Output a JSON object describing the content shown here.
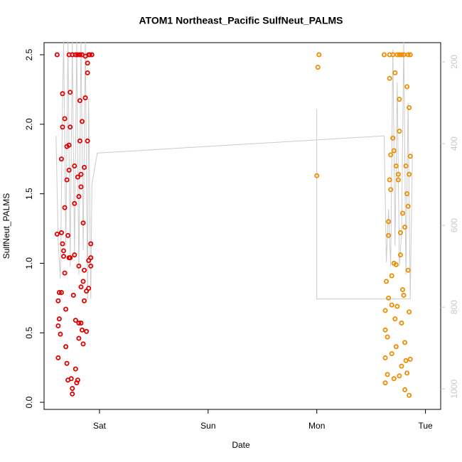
{
  "chart_data": {
    "type": "scatter",
    "title": "ATOM1 Northeast_Pacific SulfNeut_PALMS",
    "x_label": "Date",
    "y_label": "SulfNeut_PALMS",
    "xlim": [
      -0.51,
      3.14
    ],
    "xticks": [
      {
        "value": 0,
        "label": "Sat"
      },
      {
        "value": 1,
        "label": "Sun"
      },
      {
        "value": 2,
        "label": "Mon"
      },
      {
        "value": 3,
        "label": "Tue"
      }
    ],
    "ylim": [
      -0.051,
      2.587
    ],
    "yticks": [
      {
        "value": 0,
        "label": "0.0"
      },
      {
        "value": 0.5,
        "label": "0.5"
      },
      {
        "value": 1,
        "label": "1.0"
      },
      {
        "value": 1.5,
        "label": "1.5"
      },
      {
        "value": 2,
        "label": "2.0"
      },
      {
        "value": 2.5,
        "label": "2.5"
      }
    ],
    "y2lim": [
      1050,
      153
    ],
    "y2ticks": [
      200,
      400,
      600,
      800,
      1000
    ],
    "y2_color": "#c8c8c8",
    "series": [
      {
        "mode": "line",
        "axis": "y2",
        "color": "#cccccc",
        "x": [
          -0.4,
          -0.38,
          -0.36,
          -0.34,
          -0.33,
          -0.31,
          -0.29,
          -0.27,
          -0.25,
          -0.23,
          -0.21,
          -0.19,
          -0.17,
          -0.15,
          -0.13,
          -0.11,
          -0.1,
          -0.08,
          -0.07,
          -0.02,
          2.62,
          2.64,
          2.66,
          2.68,
          2.7,
          2.72,
          2.74,
          2.76,
          2.78,
          2.8,
          2.82,
          2.84,
          2.86,
          2.88,
          null,
          2.0,
          2.0,
          2.86
        ],
        "values": [
          381,
          640,
          730,
          300,
          150,
          650,
          150,
          700,
          150,
          680,
          150,
          720,
          150,
          660,
          150,
          780,
          290,
          780,
          500,
          423,
          381,
          690,
          560,
          700,
          170,
          650,
          250,
          700,
          620,
          150,
          720,
          300,
          780,
          420,
          null,
          315,
          780,
          780
        ]
      },
      {
        "mode": "points",
        "color": "#e00000",
        "x": [
          -0.39,
          -0.39,
          -0.38,
          -0.38,
          -0.38,
          -0.37,
          -0.37,
          -0.36,
          -0.35,
          -0.35,
          -0.35,
          -0.34,
          -0.34,
          -0.34,
          -0.33,
          -0.33,
          -0.32,
          -0.32,
          -0.32,
          -0.31,
          -0.31,
          -0.3,
          -0.3,
          -0.3,
          -0.29,
          -0.29,
          -0.28,
          -0.28,
          -0.28,
          -0.28,
          -0.27,
          -0.27,
          -0.27,
          -0.26,
          -0.25,
          -0.25,
          -0.25,
          -0.24,
          -0.23,
          -0.23,
          -0.23,
          -0.22,
          -0.22,
          -0.22,
          -0.21,
          -0.2,
          -0.2,
          -0.2,
          -0.19,
          -0.19,
          -0.19,
          -0.19,
          -0.18,
          -0.18,
          -0.18,
          -0.17,
          -0.17,
          -0.17,
          -0.17,
          -0.16,
          -0.16,
          -0.16,
          -0.15,
          -0.15,
          -0.15,
          -0.14,
          -0.14,
          -0.14,
          -0.13,
          -0.13,
          -0.12,
          -0.12,
          -0.11,
          -0.11,
          -0.11,
          -0.1,
          -0.1,
          -0.1,
          -0.09,
          -0.08,
          -0.08,
          -0.08,
          -0.07
        ],
        "values": [
          2.5,
          1.21,
          0.73,
          0.55,
          0.32,
          0.6,
          0.79,
          0.49,
          1.75,
          1.22,
          0.79,
          2.22,
          1.98,
          1.14,
          1.09,
          1.05,
          2.04,
          1.4,
          0.93,
          0.67,
          0.4,
          0.28,
          1.84,
          1.6,
          1.2,
          0.16,
          2.5,
          1.85,
          1.67,
          1.04,
          2.23,
          1.98,
          1.04,
          0.17,
          2.5,
          0.1,
          0.06,
          0.77,
          1.7,
          1.43,
          1.06,
          2.5,
          0.59,
          0.24,
          0.14,
          2.5,
          1.62,
          0.16,
          1.48,
          0.98,
          0.57,
          0.46,
          2.5,
          2.17,
          1.88,
          1.64,
          1.55,
          0.83,
          0.57,
          2.5,
          2.02,
          0.52,
          1.29,
          0.87,
          0.42,
          1.69,
          0.73,
          0.95,
          2.49,
          2.19,
          0.8,
          0.51,
          2.44,
          2.37,
          1.88,
          2.5,
          1.02,
          0.82,
          2.5,
          1.14,
          1.04,
          0.98,
          2.5
        ]
      },
      {
        "mode": "points",
        "color": "#f08c00",
        "x": [
          2.02,
          2.01,
          2.0,
          2.62,
          2.63,
          2.63,
          2.63,
          2.63,
          2.64,
          2.65,
          2.65,
          2.66,
          2.66,
          2.66,
          2.67,
          2.67,
          2.67,
          2.68,
          2.68,
          2.69,
          2.69,
          2.69,
          2.7,
          2.7,
          2.71,
          2.71,
          2.71,
          2.72,
          2.72,
          2.73,
          2.73,
          2.73,
          2.74,
          2.74,
          2.75,
          2.75,
          2.76,
          2.76,
          2.76,
          2.76,
          2.77,
          2.77,
          2.78,
          2.78,
          2.78,
          2.79,
          2.79,
          2.8,
          2.8,
          2.81,
          2.81,
          2.81,
          2.82,
          2.82,
          2.83,
          2.83,
          2.83,
          2.84,
          2.84,
          2.84,
          2.85,
          2.85,
          2.85,
          2.85,
          2.86,
          2.86,
          2.86
        ],
        "values": [
          2.5,
          2.41,
          1.63,
          2.5,
          0.66,
          0.52,
          0.32,
          0.14,
          0.87,
          0.47,
          0.2,
          1.3,
          1.2,
          0.75,
          2.5,
          2.33,
          1.6,
          1.78,
          1.53,
          0.91,
          0.7,
          0.35,
          2.5,
          1.9,
          1.81,
          1.0,
          0.17,
          2.37,
          0.6,
          1.7,
          0.99,
          0.4,
          2.5,
          0.69,
          1.64,
          1.6,
          2.5,
          2.18,
          1.95,
          0.19,
          1.22,
          1.06,
          2.5,
          0.57,
          0.26,
          1.36,
          0.81,
          2.5,
          0.77,
          1.26,
          0.43,
          0.09,
          1.7,
          0.3,
          2.27,
          1.5,
          0.21,
          2.5,
          1.41,
          0.95,
          2.12,
          1.64,
          0.65,
          0.05,
          1.77,
          0.31,
          2.5
        ]
      }
    ]
  }
}
